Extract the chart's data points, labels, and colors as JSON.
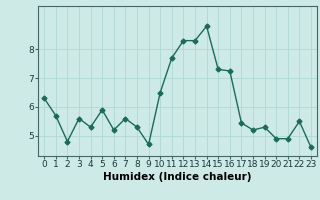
{
  "x": [
    0,
    1,
    2,
    3,
    4,
    5,
    6,
    7,
    8,
    9,
    10,
    11,
    12,
    13,
    14,
    15,
    16,
    17,
    18,
    19,
    20,
    21,
    22,
    23
  ],
  "y": [
    6.3,
    5.7,
    4.8,
    5.6,
    5.3,
    5.9,
    5.2,
    5.6,
    5.3,
    4.7,
    6.5,
    7.7,
    8.3,
    8.3,
    8.8,
    7.3,
    7.25,
    5.45,
    5.2,
    5.3,
    4.9,
    4.9,
    5.5,
    4.6
  ],
  "line_color": "#1a6b5a",
  "marker": "D",
  "marker_size": 2.5,
  "bg_color": "#ceeae7",
  "grid_color": "#b0d8d4",
  "xlabel": "Humidex (Indice chaleur)",
  "ylim": [
    4.3,
    9.5
  ],
  "xlim": [
    -0.5,
    23.5
  ],
  "xtick_labels": [
    "0",
    "1",
    "2",
    "3",
    "4",
    "5",
    "6",
    "7",
    "8",
    "9",
    "10",
    "11",
    "12",
    "13",
    "14",
    "15",
    "16",
    "17",
    "18",
    "19",
    "20",
    "21",
    "22",
    "23"
  ],
  "yticks": [
    5,
    6,
    7,
    8
  ],
  "tick_fontsize": 6.5,
  "xlabel_fontsize": 7.5,
  "linewidth": 1.0
}
